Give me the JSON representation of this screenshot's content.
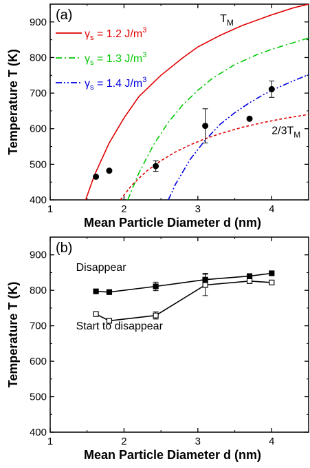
{
  "chart_data": [
    {
      "panel": "(a)",
      "type": "line",
      "xlabel": "Mean Particle Diameter  d (nm)",
      "ylabel": "Temperature  T (K)",
      "xlim": [
        1,
        4.5
      ],
      "ylim": [
        400,
        950
      ],
      "xticks": [
        1,
        2,
        3,
        4
      ],
      "yticks": [
        400,
        500,
        600,
        700,
        800,
        900
      ],
      "legend_placement": "top-left",
      "series": [
        {
          "name": "γs = 1.2 J/m3",
          "style": "solid",
          "color": "#e00000",
          "x": [
            1.48,
            1.6,
            1.8,
            2.0,
            2.2,
            2.5,
            2.8,
            3.0,
            3.3,
            3.6,
            4.0,
            4.3,
            4.5
          ],
          "y": [
            400,
            470,
            560,
            630,
            690,
            750,
            800,
            830,
            862,
            890,
            920,
            940,
            950
          ]
        },
        {
          "name": "γs = 1.3 J/m3",
          "style": "dashdot",
          "color": "#00c800",
          "x": [
            2.05,
            2.2,
            2.4,
            2.6,
            2.8,
            3.0,
            3.2,
            3.5,
            3.8,
            4.0,
            4.2,
            4.5
          ],
          "y": [
            400,
            475,
            555,
            618,
            668,
            708,
            742,
            780,
            808,
            823,
            836,
            855
          ]
        },
        {
          "name": "γs = 1.4 J/m3",
          "style": "dashdotdot",
          "color": "#0000e0",
          "x": [
            2.6,
            2.7,
            2.9,
            3.1,
            3.3,
            3.5,
            3.7,
            3.9,
            4.1,
            4.3,
            4.5
          ],
          "y": [
            400,
            445,
            515,
            568,
            612,
            645,
            673,
            697,
            717,
            735,
            752
          ]
        },
        {
          "name": "2/3TM",
          "style": "dot",
          "color": "#e00000",
          "x": [
            1.95,
            2.1,
            2.3,
            2.5,
            2.7,
            2.9,
            3.1,
            3.3,
            3.6,
            3.9,
            4.2,
            4.5
          ],
          "y": [
            400,
            440,
            480,
            510,
            535,
            555,
            572,
            586,
            604,
            618,
            630,
            640
          ]
        }
      ],
      "points": {
        "x": [
          1.62,
          1.8,
          2.43,
          3.1,
          3.7,
          4.0
        ],
        "y": [
          465,
          482,
          495,
          608,
          628,
          711
        ],
        "yerr": [
          0,
          0,
          15,
          48,
          0,
          23
        ]
      },
      "annotations": [
        {
          "text": "T",
          "sub": "M",
          "x": 3.3,
          "y": 900,
          "color": "#e00000"
        },
        {
          "text": "2/3T",
          "sub": "M",
          "x": 4.0,
          "y": 585,
          "color": "#e00000"
        }
      ]
    },
    {
      "panel": "(b)",
      "type": "line",
      "xlabel": "Mean Particle Diameter  d (nm)",
      "ylabel": "Temperature  T (K)",
      "xlim": [
        1,
        4.5
      ],
      "ylim": [
        400,
        950
      ],
      "xticks": [
        1,
        2,
        3,
        4
      ],
      "yticks": [
        400,
        500,
        600,
        700,
        800,
        900
      ],
      "series": [
        {
          "name": "Disappear",
          "marker": "filled-square",
          "x": [
            1.62,
            1.8,
            2.43,
            3.1,
            3.7,
            4.0
          ],
          "y": [
            797,
            795,
            811,
            830,
            840,
            848
          ],
          "yerr": [
            0,
            0,
            12,
            18,
            0,
            0
          ]
        },
        {
          "name": "Start to disappear",
          "marker": "open-square",
          "x": [
            1.62,
            1.8,
            2.43,
            3.1,
            3.7,
            4.0
          ],
          "y": [
            733,
            714,
            729,
            815,
            826,
            822
          ],
          "yerr": [
            0,
            0,
            10,
            30,
            0,
            0
          ]
        }
      ],
      "annotations": [
        {
          "text": "Disappear",
          "x": 1.35,
          "y": 855
        },
        {
          "text": "Start to disappear",
          "x": 1.35,
          "y": 690
        }
      ]
    }
  ]
}
